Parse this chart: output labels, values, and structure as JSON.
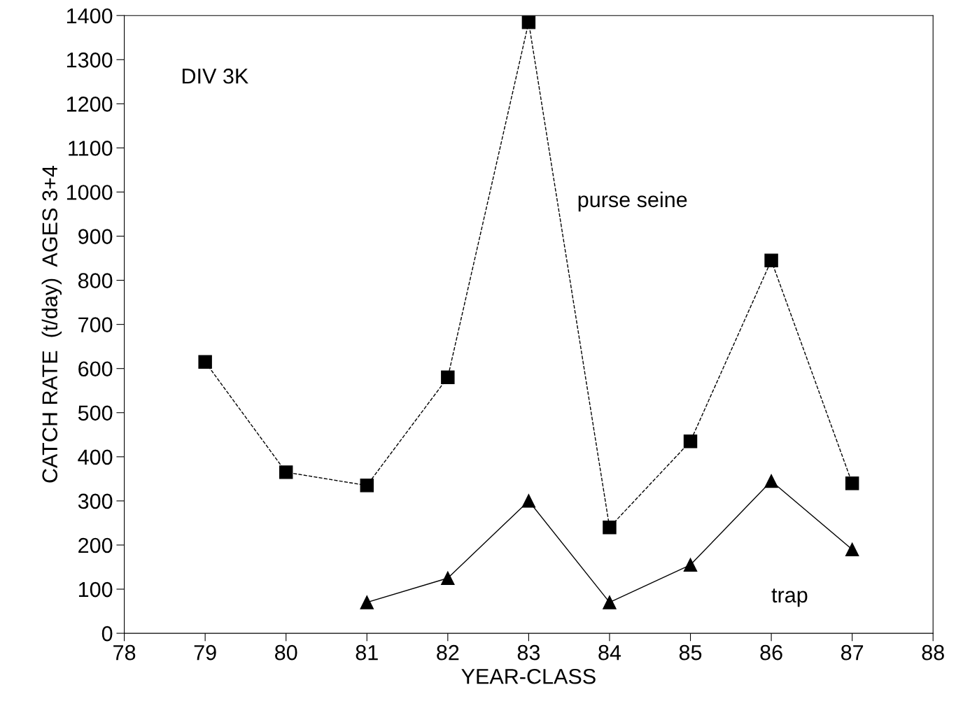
{
  "chart_data": {
    "type": "line",
    "xlabel": "YEAR-CLASS",
    "ylabel": "CATCH RATE  (t/day)  AGES 3+4",
    "x": [
      79,
      80,
      81,
      82,
      83,
      84,
      85,
      86,
      87
    ],
    "series": [
      {
        "name": "purse seine",
        "color": "#000000",
        "marker": "square",
        "line_style": "dashed",
        "values": [
          615,
          365,
          335,
          580,
          1385,
          240,
          435,
          845,
          340
        ]
      },
      {
        "name": "trap",
        "color": "#000000",
        "marker": "triangle",
        "line_style": "solid",
        "values": [
          null,
          null,
          70,
          125,
          300,
          70,
          155,
          345,
          190
        ]
      }
    ],
    "annotations": [
      "DIV 3K"
    ],
    "xlim": [
      78,
      88
    ],
    "xticks": [
      78,
      79,
      80,
      81,
      82,
      83,
      84,
      85,
      86,
      87,
      88
    ],
    "ylim": [
      0,
      1400
    ],
    "yticks": [
      0,
      100,
      200,
      300,
      400,
      500,
      600,
      700,
      800,
      900,
      1000,
      1100,
      1200,
      1300,
      1400
    ],
    "grid": false,
    "legend": false
  }
}
